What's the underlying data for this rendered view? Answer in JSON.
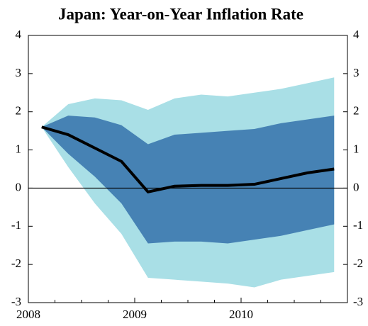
{
  "chart_data": {
    "type": "fan",
    "title": "Japan: Year-on-Year Inflation Rate",
    "x": [
      2008.125,
      2008.375,
      2008.625,
      2008.875,
      2009.125,
      2009.375,
      2009.625,
      2009.875,
      2010.125,
      2010.375,
      2010.625,
      2010.875
    ],
    "bands": [
      {
        "color": "#a9dfe6",
        "upper": [
          1.6,
          2.2,
          2.35,
          2.3,
          2.05,
          2.35,
          2.45,
          2.4,
          2.5,
          2.6,
          2.75,
          2.9
        ],
        "lower": [
          1.6,
          0.55,
          -0.4,
          -1.2,
          -2.35,
          -2.4,
          -2.45,
          -2.5,
          -2.6,
          -2.4,
          -2.3,
          -2.2
        ]
      },
      {
        "color": "#4682b4",
        "upper": [
          1.6,
          1.9,
          1.85,
          1.65,
          1.15,
          1.4,
          1.45,
          1.5,
          1.55,
          1.7,
          1.8,
          1.9
        ],
        "lower": [
          1.6,
          0.9,
          0.3,
          -0.4,
          -1.45,
          -1.4,
          -1.4,
          -1.45,
          -1.35,
          -1.25,
          -1.1,
          -0.95
        ]
      }
    ],
    "series": [
      {
        "color": "#000000",
        "values": [
          1.6,
          1.4,
          1.05,
          0.7,
          -0.1,
          0.05,
          0.07,
          0.07,
          0.1,
          0.25,
          0.4,
          0.5
        ]
      }
    ],
    "reference_line": 0,
    "xlim": [
      2008,
      2011
    ],
    "xticks": [
      2008,
      2009,
      2010
    ],
    "xminor_ticks": [
      2008.25,
      2008.5,
      2008.75,
      2009.25,
      2009.5,
      2009.75,
      2010.25,
      2010.5,
      2010.75
    ],
    "ylim": [
      -3,
      4
    ],
    "yticks": [
      -3,
      -2,
      -1,
      0,
      1,
      2,
      3,
      4
    ],
    "y2lim": [
      -3,
      4
    ],
    "y2ticks": [
      -3,
      -2,
      -1,
      0,
      1,
      2,
      3,
      4
    ]
  }
}
